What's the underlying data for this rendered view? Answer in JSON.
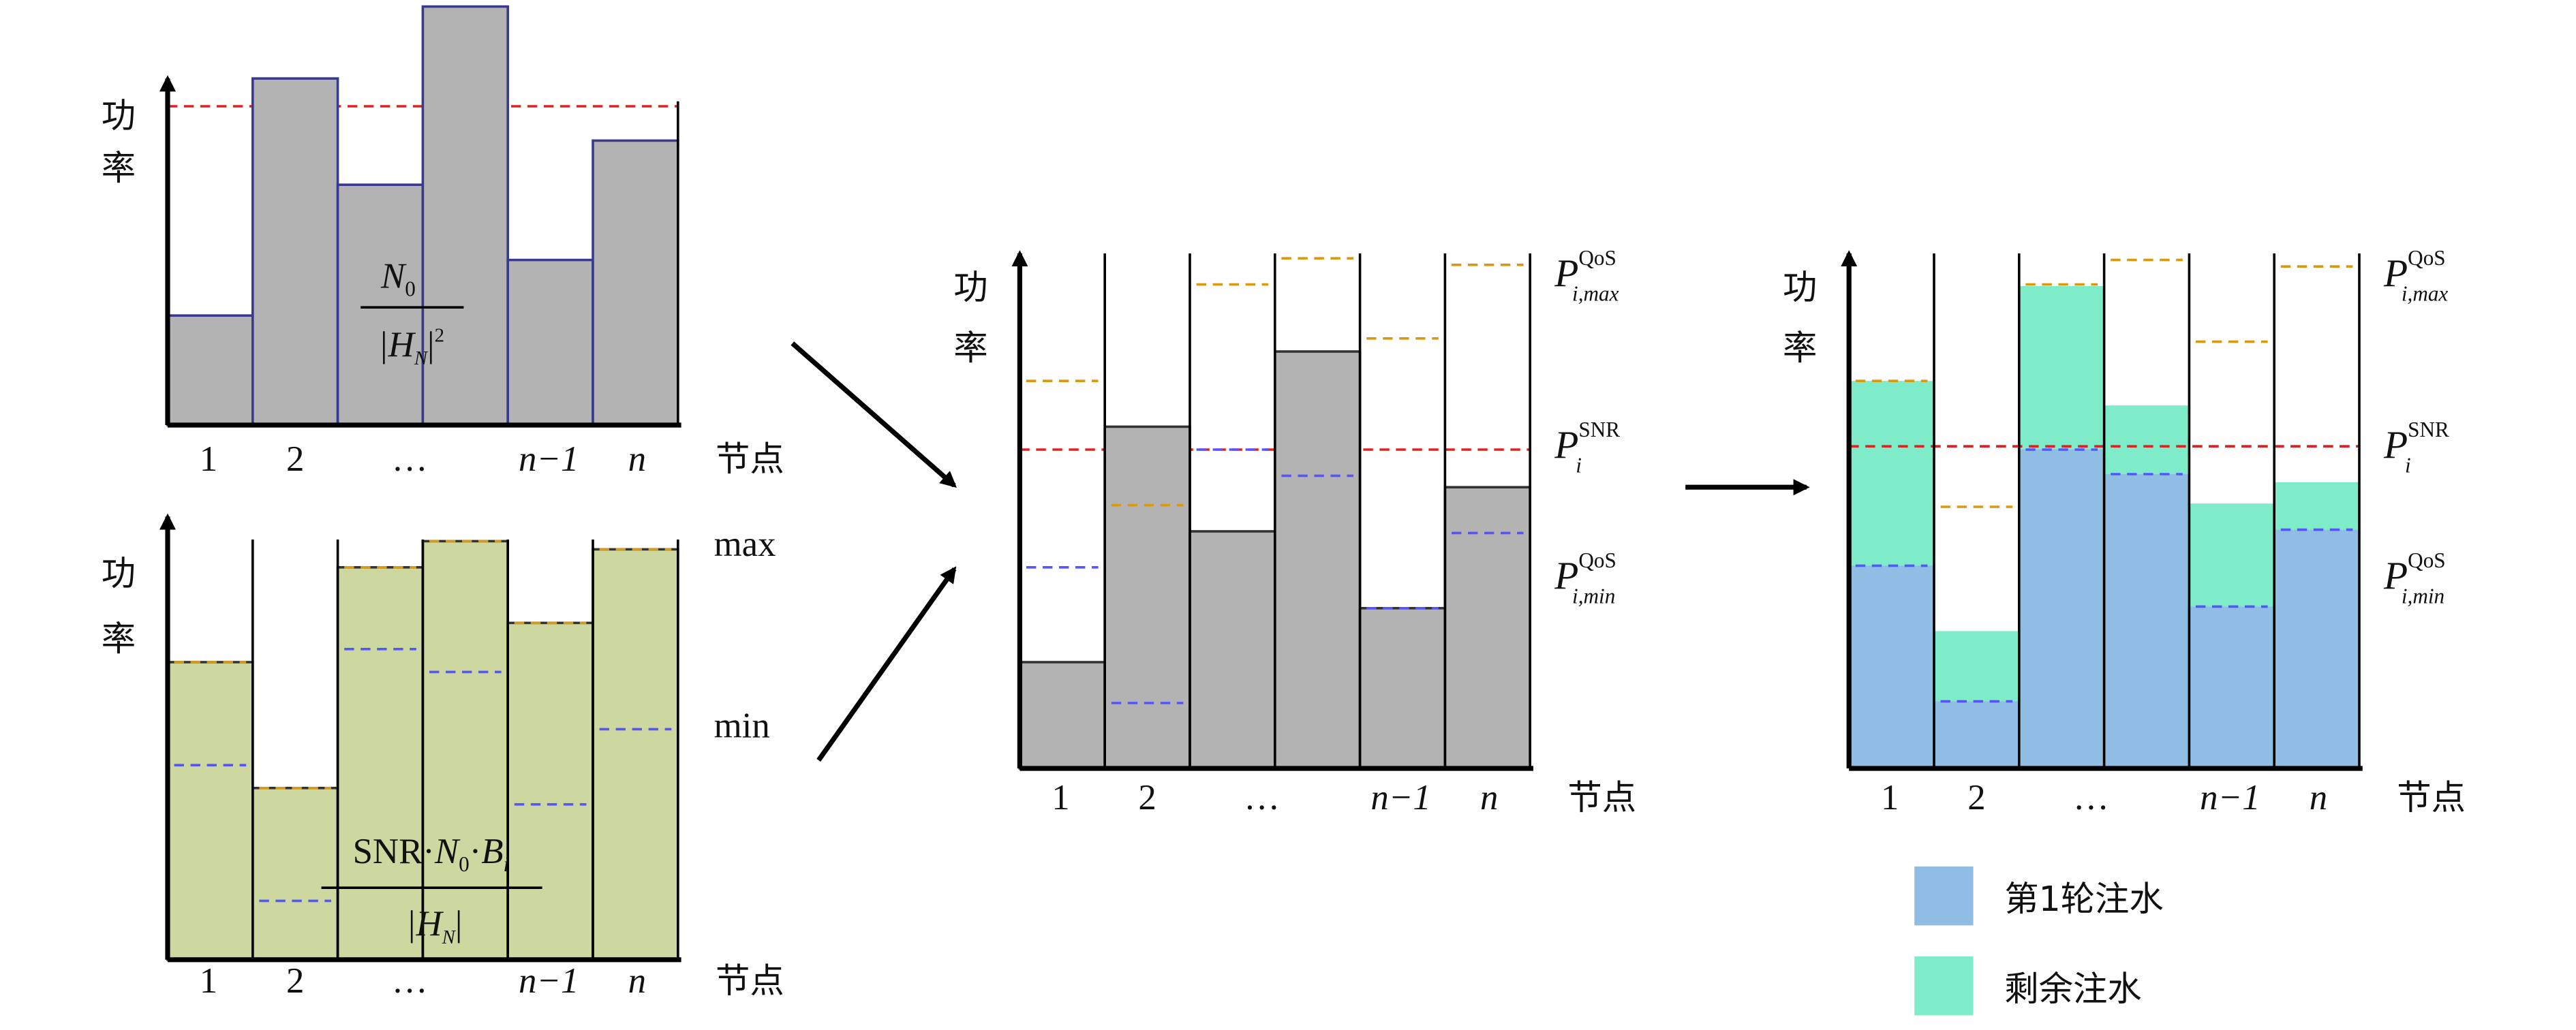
{
  "panels": [
    {
      "y_label": [
        "功",
        "率"
      ],
      "x_labels": [
        "1",
        "2",
        "…",
        "n−1",
        "n"
      ],
      "x_title": "节点",
      "formula": {
        "num_base": "N",
        "num_sub": "0",
        "den_base": "|H",
        "den_sub": "N",
        "den_tail": "|",
        "den_sup": "2"
      }
    },
    {
      "y_label": [
        "功",
        "率"
      ],
      "x_labels": [
        "1",
        "2",
        "…",
        "n−1",
        "n"
      ],
      "x_title": "节点",
      "max": "max",
      "min": "min",
      "formula": {
        "num": "SNR·",
        "num_b1": "N",
        "num_s1": "0",
        "num_dot": "·",
        "num_b2": "B",
        "num_s2": "i",
        "den_base": "|H",
        "den_sub": "N",
        "den_tail": "|"
      }
    },
    {
      "y_label": [
        "功",
        "率"
      ],
      "x_labels": [
        "1",
        "2",
        "…",
        "n−1",
        "n"
      ],
      "x_title": "节点",
      "levels": [
        {
          "base": "P",
          "sup": "QoS",
          "sub": "i,max"
        },
        {
          "base": "P",
          "sup": "SNR",
          "sub": "i"
        },
        {
          "base": "P",
          "sup": "QoS",
          "sub": "i,min"
        }
      ]
    },
    {
      "y_label": [
        "功",
        "率"
      ],
      "x_labels": [
        "1",
        "2",
        "…",
        "n−1",
        "n"
      ],
      "x_title": "节点",
      "levels": [
        {
          "base": "P",
          "sup": "QoS",
          "sub": "i,max"
        },
        {
          "base": "P",
          "sup": "SNR",
          "sub": "i"
        },
        {
          "base": "P",
          "sup": "QoS",
          "sub": "i,min"
        }
      ],
      "legend": [
        "第1轮注水",
        "剩余注水"
      ]
    }
  ]
}
